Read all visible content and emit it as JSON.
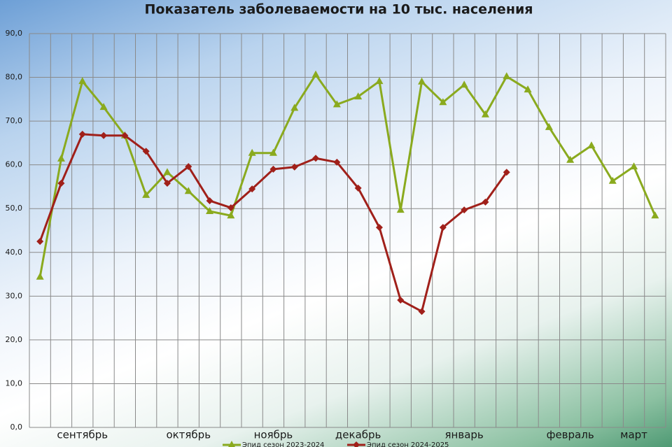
{
  "chart_data": {
    "type": "line",
    "title": "Показатель заболеваемости на 10 тыс. населения",
    "categories": [
      null,
      null,
      "сентябрь",
      null,
      null,
      null,
      null,
      "октябрь",
      null,
      null,
      null,
      "ноябрь",
      null,
      null,
      null,
      "декабрь",
      null,
      null,
      null,
      null,
      "январь",
      null,
      null,
      null,
      null,
      "февраль",
      null,
      null,
      "март",
      null
    ],
    "series": [
      {
        "name": "Эпид сезон 2023-2024",
        "color": "#8aaa1e",
        "marker": "triangle",
        "values": [
          34.4,
          61.4,
          79.1,
          73.2,
          66.7,
          53.1,
          58.3,
          54.0,
          49.4,
          48.4,
          62.7,
          62.7,
          73.0,
          80.6,
          73.8,
          75.6,
          79.1,
          49.7,
          79.0,
          74.3,
          78.3,
          71.5,
          80.2,
          77.2,
          68.6,
          61.1,
          64.4,
          56.3,
          59.6,
          48.4
        ]
      },
      {
        "name": "Эпид сезон 2024-2025",
        "color": "#a0201a",
        "marker": "diamond",
        "values": [
          42.5,
          55.8,
          67.0,
          66.7,
          66.7,
          63.1,
          55.8,
          59.6,
          51.8,
          50.2,
          54.5,
          59.0,
          59.5,
          61.5,
          60.6,
          54.7,
          45.7,
          29.1,
          26.5,
          45.7,
          49.7,
          51.5,
          58.3,
          null,
          null,
          null,
          null,
          null,
          null,
          null
        ]
      }
    ],
    "ylim": [
      0,
      90
    ],
    "yticks": [
      {
        "value": 0,
        "label": "0,0"
      },
      {
        "value": 10,
        "label": "10,0"
      },
      {
        "value": 20,
        "label": "20,0"
      },
      {
        "value": 30,
        "label": "30,0"
      },
      {
        "value": 40,
        "label": "40,0"
      },
      {
        "value": 50,
        "label": "50,0"
      },
      {
        "value": 60,
        "label": "60,0"
      },
      {
        "value": 70,
        "label": "70,0"
      },
      {
        "value": 80,
        "label": "80,0"
      },
      {
        "value": 90,
        "label": "90,0"
      }
    ],
    "grid": true,
    "legend": "bottom"
  }
}
